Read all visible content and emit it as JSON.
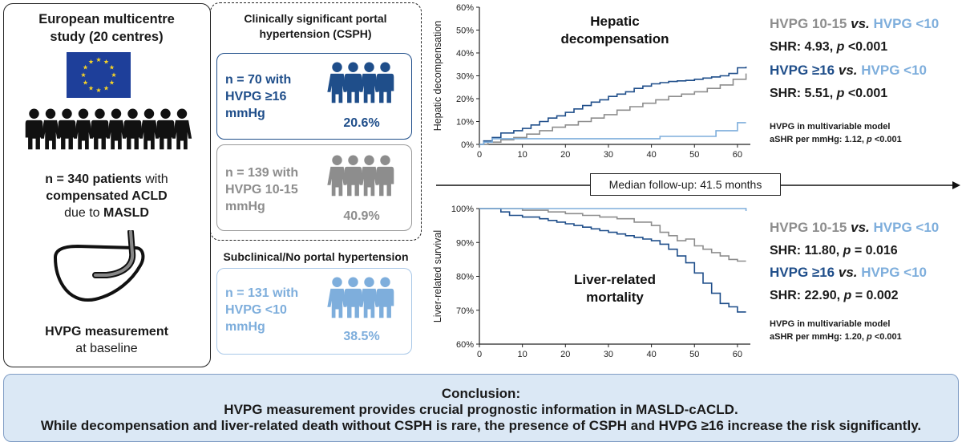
{
  "colors": {
    "dark_blue": "#1f4e8a",
    "grey": "#8d8d8d",
    "light_blue": "#7eaedc",
    "eu_blue": "#1e3f9a",
    "eu_star": "#f6d327"
  },
  "left": {
    "title_line1": "European multicentre",
    "title_line2": "study (20 centres)",
    "patients_count": "n = 340 patients",
    "patients_with": " with",
    "condition": "compensated ACLD",
    "due_to": "due to ",
    "etiology": "MASLD",
    "measurement": "HVPG measurement",
    "at_baseline": "at baseline"
  },
  "csph": {
    "title_line1": "Clinically significant portal",
    "title_line2": "hypertension (CSPH)",
    "group16": {
      "line1": "n = 70 with",
      "line2": "HVPG ≥16",
      "line3": "mmHg",
      "pct": "20.6%"
    },
    "group1015": {
      "line1": "n = 139 with",
      "line2": "HVPG 10-15",
      "line3": "mmHg",
      "pct": "40.9%"
    }
  },
  "subclinical": {
    "title": "Subclinical/No portal hypertension",
    "group10": {
      "line1": "n = 131 with",
      "line2": "HVPG <10",
      "line3": "mmHg",
      "pct": "38.5%"
    }
  },
  "followup": {
    "label": "Median follow-up: 41.5 months"
  },
  "stats_top": {
    "cmp1_a": "HVPG 10-15",
    "cmp1_vs": " vs. ",
    "cmp1_b": "HVPG <10",
    "shr1_label": "SHR: 4.93, ",
    "shr1_p": "p",
    "shr1_val": " <0.001",
    "cmp2_a": "HVPG ≥16",
    "cmp2_vs": " vs. ",
    "cmp2_b": "HVPG <10",
    "shr2_label": "SHR: 5.51, ",
    "shr2_p": "p",
    "shr2_val": " <0.001",
    "model_title": "HVPG in multivariable model",
    "model_val_label": "aSHR per mmHg: 1.12, ",
    "model_p": "p",
    "model_val": " <0.001"
  },
  "stats_bottom": {
    "cmp1_a": "HVPG 10-15",
    "cmp1_vs": " vs. ",
    "cmp1_b": "HVPG <10",
    "shr1_label": "SHR: 11.80, ",
    "shr1_p": "p",
    "shr1_val": " = 0.016",
    "cmp2_a": "HVPG ≥16",
    "cmp2_vs": " vs. ",
    "cmp2_b": "HVPG <10",
    "shr2_label": "SHR: 22.90, ",
    "shr2_p": "p",
    "shr2_val": " = 0.002",
    "model_title": "HVPG in multivariable model",
    "model_val_label": "aSHR per mmHg: 1.20, ",
    "model_p": "p",
    "model_val": " <0.001"
  },
  "conclusion": {
    "title": "Conclusion:",
    "line1": "HVPG measurement provides crucial prognostic information in MASLD-cACLD.",
    "line2": "While decompensation and liver-related death without CSPH is rare, the presence of CSPH and HVPG ≥16 increase the risk significantly."
  },
  "chart_data": [
    {
      "type": "line",
      "title": "Hepatic decompensation",
      "title_line1": "Hepatic",
      "title_line2": "decompensation",
      "ylabel": "Hepatic decompensation",
      "xlabel": "",
      "xlim": [
        0,
        63
      ],
      "ylim": [
        0,
        60
      ],
      "x_ticks": [
        "0",
        "10",
        "20",
        "30",
        "40",
        "50",
        "60"
      ],
      "y_ticks": [
        "0%",
        "10%",
        "20%",
        "30%",
        "40%",
        "50%",
        "60%"
      ],
      "series": [
        {
          "name": "HVPG ≥16",
          "color": "#1f4e8a",
          "x": [
            0,
            1,
            3,
            5,
            8,
            10,
            12,
            14,
            16,
            18,
            20,
            22,
            24,
            26,
            28,
            30,
            32,
            34,
            36,
            38,
            40,
            42,
            44,
            46,
            48,
            50,
            52,
            54,
            56,
            58,
            60,
            62
          ],
          "y": [
            0,
            1.5,
            3,
            5,
            6,
            7,
            8.5,
            10,
            11.5,
            12.5,
            14,
            15.5,
            17,
            18.5,
            19.5,
            21,
            22,
            23,
            24.5,
            25.5,
            26.5,
            27,
            27.5,
            27.8,
            28,
            28.5,
            29,
            29.5,
            30,
            31,
            33.5,
            34
          ]
        },
        {
          "name": "HVPG 10-15",
          "color": "#8d8d8d",
          "x": [
            0,
            2,
            5,
            8,
            11,
            14,
            17,
            20,
            23,
            26,
            29,
            32,
            35,
            38,
            41,
            44,
            47,
            50,
            53,
            56,
            59,
            62
          ],
          "y": [
            0,
            1,
            2,
            3,
            4.5,
            6,
            7.5,
            8.5,
            10,
            11.5,
            13,
            15,
            16.5,
            18,
            19.5,
            21,
            22,
            23,
            24.5,
            26,
            28.5,
            31
          ]
        },
        {
          "name": "HVPG <10",
          "color": "#7eaedc",
          "x": [
            0,
            1,
            3,
            20,
            40,
            42,
            50,
            55,
            57,
            60,
            62
          ],
          "y": [
            0,
            1,
            2.5,
            2.5,
            2.5,
            3.5,
            3.5,
            6,
            6,
            9.5,
            9.5
          ]
        }
      ]
    },
    {
      "type": "line",
      "title": "Liver-related mortality",
      "title_line1": "Liver-related",
      "title_line2": "mortality",
      "ylabel": "Liver-related survival",
      "xlabel": "",
      "xlim": [
        0,
        63
      ],
      "ylim": [
        60,
        100
      ],
      "x_ticks": [
        "0",
        "10",
        "20",
        "30",
        "40",
        "50",
        "60"
      ],
      "y_ticks": [
        "60%",
        "70%",
        "80%",
        "90%",
        "100%"
      ],
      "series": [
        {
          "name": "HVPG ≥16",
          "color": "#1f4e8a",
          "x": [
            0,
            5,
            7,
            10,
            14,
            16,
            18,
            20,
            22,
            24,
            26,
            28,
            30,
            32,
            34,
            36,
            38,
            40,
            42,
            44,
            46,
            48,
            50,
            52,
            54,
            56,
            58,
            60,
            62
          ],
          "y": [
            100,
            99,
            98,
            97.5,
            97,
            96.5,
            96,
            95.5,
            95,
            94.5,
            94,
            93.5,
            93,
            92.5,
            92,
            91.5,
            91,
            90.5,
            89.5,
            88,
            86,
            84,
            81,
            78,
            75,
            72,
            71,
            69.5,
            69.5
          ]
        },
        {
          "name": "HVPG 10-15",
          "color": "#8d8d8d",
          "x": [
            0,
            10,
            16,
            20,
            24,
            28,
            32,
            36,
            40,
            42,
            44,
            46,
            48,
            50,
            52,
            54,
            56,
            58,
            60,
            62
          ],
          "y": [
            100,
            99.5,
            99,
            98.5,
            98,
            97.5,
            97,
            96,
            95,
            93,
            92,
            90.5,
            91,
            89,
            88,
            87,
            86,
            85,
            84.5,
            84.5
          ]
        },
        {
          "name": "HVPG <10",
          "color": "#7eaedc",
          "x": [
            0,
            62
          ],
          "y": [
            100,
            99.3
          ]
        }
      ]
    }
  ]
}
